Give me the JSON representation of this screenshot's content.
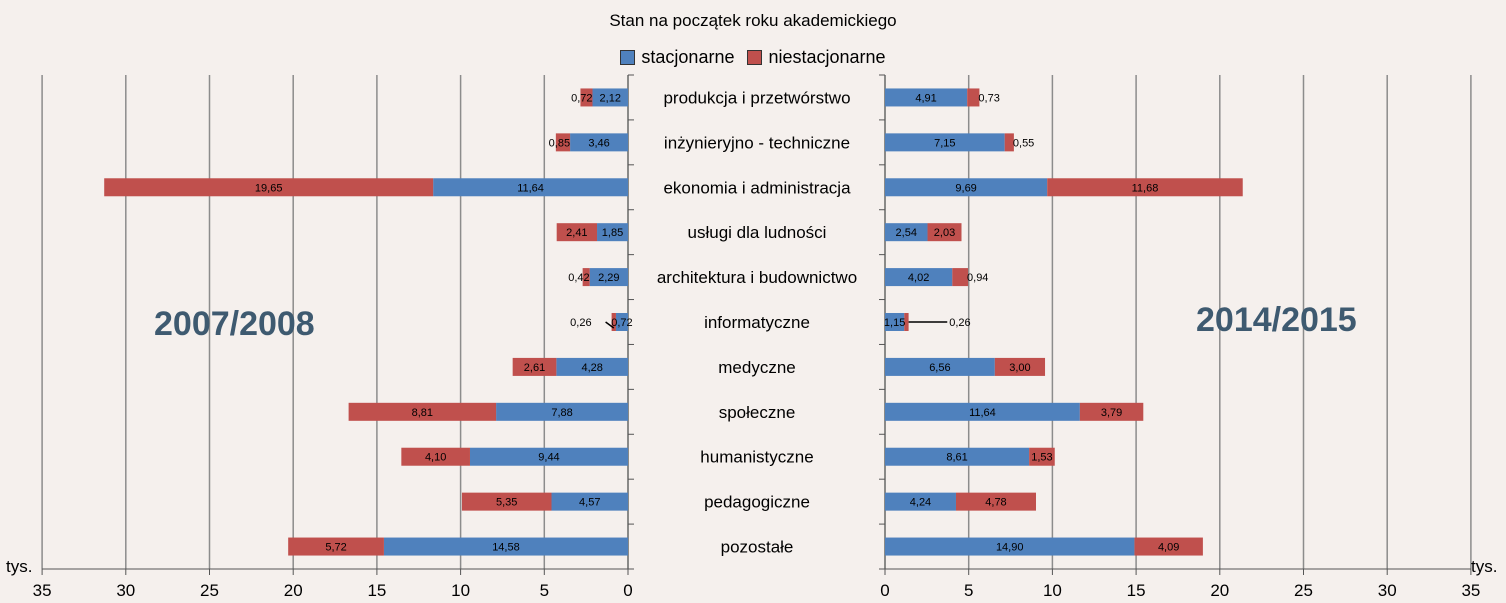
{
  "chart_data": {
    "type": "bar",
    "title": "",
    "subtitle": "Stan na początek roku akademickiego",
    "unit_label": "tys.",
    "colors": {
      "stacjonarne": "#4f81bd",
      "niestacjonarne": "#c0504d"
    },
    "categories": [
      "produkcja i przetwórstwo",
      "inżynieryjno  - techniczne",
      "ekonomia i administracja",
      "usługi dla ludności",
      "architektura i budownictwo",
      "informatyczne",
      "medyczne",
      "społeczne",
      "humanistyczne",
      "pedagogiczne",
      "pozostałe"
    ],
    "panels": [
      {
        "year_label": "2007/2008",
        "direction": "left",
        "xlim": [
          0,
          35
        ],
        "ticks": [
          "35",
          "30",
          "25",
          "20",
          "15",
          "10",
          "5",
          "0"
        ],
        "series": [
          {
            "name": "stacjonarne",
            "values": [
              2.12,
              3.46,
              11.64,
              1.85,
              2.29,
              0.72,
              4.28,
              7.88,
              9.44,
              4.57,
              14.58
            ],
            "labels": [
              "2,12",
              "3,46",
              "11,64",
              "1,85",
              "2,29",
              "0,72",
              "4,28",
              "7,88",
              "9,44",
              "4,57",
              "14,58"
            ]
          },
          {
            "name": "niestacjonarne",
            "values": [
              0.72,
              0.85,
              19.65,
              2.41,
              0.42,
              0.26,
              2.61,
              8.81,
              4.1,
              5.35,
              5.72
            ],
            "labels": [
              "0,72",
              "0,85",
              "19,65",
              "2,41",
              "0,42",
              "0,26",
              "2,61",
              "8,81",
              "4,10",
              "5,35",
              "5,72"
            ]
          }
        ]
      },
      {
        "year_label": "2014/2015",
        "direction": "right",
        "xlim": [
          0,
          35
        ],
        "ticks": [
          "0",
          "5",
          "10",
          "15",
          "20",
          "25",
          "30",
          "35"
        ],
        "series": [
          {
            "name": "stacjonarne",
            "values": [
              4.91,
              7.15,
              9.69,
              2.54,
              4.02,
              1.15,
              6.56,
              11.64,
              8.61,
              4.24,
              14.9
            ],
            "labels": [
              "4,91",
              "7,15",
              "9,69",
              "2,54",
              "4,02",
              "1,15",
              "6,56",
              "11,64",
              "8,61",
              "4,24",
              "14,90"
            ]
          },
          {
            "name": "niestacjonarne",
            "values": [
              0.73,
              0.55,
              11.68,
              2.03,
              0.94,
              0.26,
              3.0,
              3.79,
              1.53,
              4.78,
              4.09
            ],
            "labels": [
              "0,73",
              "0,55",
              "11,68",
              "2,03",
              "0,94",
              "0,26",
              "3,00",
              "3,79",
              "1,53",
              "4,78",
              "4,09"
            ]
          }
        ]
      }
    ]
  }
}
